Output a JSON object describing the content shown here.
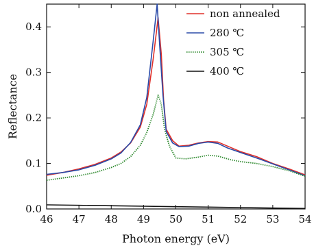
{
  "chart_data": {
    "type": "line",
    "title": "",
    "xlabel": "Photon energy (eV)",
    "ylabel": "Reflectance",
    "xlim": [
      46,
      54
    ],
    "ylim": [
      0.0,
      0.45
    ],
    "xticks": [
      "46",
      "47",
      "48",
      "49",
      "50",
      "51",
      "52",
      "53",
      "54"
    ],
    "yticks": [
      "0.0",
      "0.1",
      "0.2",
      "0.3",
      "0.4"
    ],
    "ytick_values": [
      0.0,
      0.1,
      0.2,
      0.3,
      0.4
    ],
    "grid": false,
    "legend_position": "top-right",
    "series": [
      {
        "name": "non annealed",
        "color": "#e0302a",
        "style": "solid",
        "x": [
          46.0,
          46.5,
          47.0,
          47.5,
          48.0,
          48.3,
          48.6,
          48.9,
          49.1,
          49.3,
          49.45,
          49.55,
          49.62,
          49.7,
          49.9,
          50.1,
          50.4,
          50.7,
          51.0,
          51.3,
          51.6,
          52.0,
          52.5,
          53.0,
          53.5,
          54.0
        ],
        "y": [
          0.074,
          0.08,
          0.088,
          0.098,
          0.112,
          0.125,
          0.145,
          0.18,
          0.23,
          0.33,
          0.42,
          0.34,
          0.24,
          0.175,
          0.15,
          0.138,
          0.14,
          0.145,
          0.148,
          0.147,
          0.138,
          0.126,
          0.115,
          0.1,
          0.088,
          0.075
        ]
      },
      {
        "name": "280 ℃",
        "color": "#2a4aa8",
        "style": "solid",
        "x": [
          46.0,
          46.5,
          47.0,
          47.5,
          48.0,
          48.3,
          48.6,
          48.9,
          49.1,
          49.3,
          49.42,
          49.5,
          49.6,
          49.7,
          49.9,
          50.1,
          50.4,
          50.7,
          51.0,
          51.3,
          51.6,
          52.0,
          52.5,
          53.0,
          53.5,
          54.0
        ],
        "y": [
          0.076,
          0.08,
          0.086,
          0.096,
          0.11,
          0.123,
          0.146,
          0.185,
          0.245,
          0.37,
          0.45,
          0.36,
          0.25,
          0.17,
          0.145,
          0.137,
          0.138,
          0.144,
          0.147,
          0.144,
          0.134,
          0.124,
          0.112,
          0.099,
          0.086,
          0.073
        ]
      },
      {
        "name": "305 ℃",
        "color": "#2f8a2f",
        "style": "dotted",
        "x": [
          46.0,
          46.5,
          47.0,
          47.5,
          48.0,
          48.3,
          48.6,
          48.9,
          49.1,
          49.3,
          49.45,
          49.55,
          49.65,
          49.8,
          50.0,
          50.3,
          50.7,
          51.0,
          51.3,
          51.7,
          52.0,
          52.5,
          53.0,
          53.5,
          54.0
        ],
        "y": [
          0.063,
          0.068,
          0.073,
          0.08,
          0.091,
          0.1,
          0.115,
          0.14,
          0.168,
          0.208,
          0.25,
          0.23,
          0.175,
          0.138,
          0.112,
          0.11,
          0.114,
          0.118,
          0.116,
          0.108,
          0.104,
          0.1,
          0.093,
          0.084,
          0.072
        ]
      },
      {
        "name": "400 ℃",
        "color": "#111111",
        "style": "solid",
        "x": [
          46.0,
          47.0,
          48.0,
          49.0,
          50.0,
          51.0,
          52.0,
          53.0,
          54.0
        ],
        "y": [
          0.009,
          0.008,
          0.007,
          0.006,
          0.005,
          0.004,
          0.003,
          0.002,
          0.001
        ]
      }
    ]
  }
}
